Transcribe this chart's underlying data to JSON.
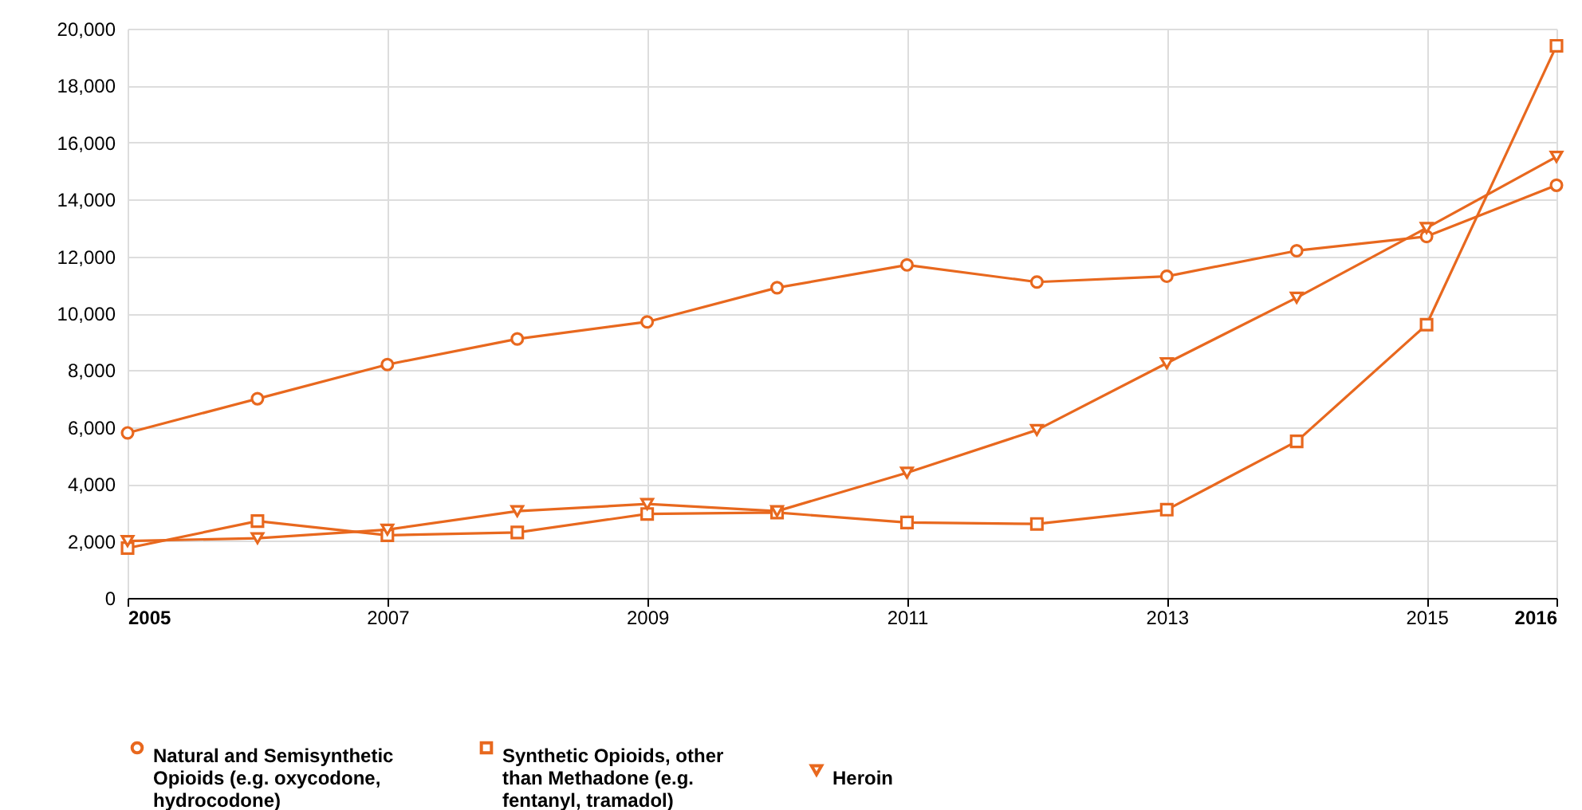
{
  "chart_data": {
    "type": "line",
    "x": [
      2005,
      2006,
      2007,
      2008,
      2009,
      2010,
      2011,
      2012,
      2013,
      2014,
      2015,
      2016
    ],
    "series": [
      {
        "name": "Natural and Semisynthetic Opioids (e.g. oxycodone, hydrocodone)",
        "color": "#e8681e",
        "marker": "circle",
        "values": [
          5800,
          7000,
          8200,
          9100,
          9700,
          10900,
          11700,
          11100,
          11300,
          12200,
          12700,
          14500
        ]
      },
      {
        "name": "Synthetic Opioids, other than Methadone (e.g. fentanyl, tramadol)",
        "color": "#e8681e",
        "marker": "square",
        "values": [
          1750,
          2700,
          2200,
          2300,
          2950,
          3000,
          2650,
          2600,
          3100,
          5500,
          9600,
          19400
        ]
      },
      {
        "name": "Heroin",
        "color": "#e8681e",
        "marker": "triangle",
        "values": [
          2000,
          2100,
          2400,
          3050,
          3300,
          3050,
          4400,
          5900,
          8250,
          10550,
          13000,
          15500
        ]
      }
    ],
    "xlim": [
      2005,
      2016
    ],
    "xticks": [
      2005,
      2007,
      2009,
      2011,
      2013,
      2015,
      2016
    ],
    "ylim": [
      0,
      20000
    ],
    "yticks": [
      0,
      {
        "value": 2000,
        "label": "2,000"
      },
      {
        "value": 4000,
        "label": "4,000"
      },
      {
        "value": 6000,
        "label": "6,000"
      },
      {
        "value": 8000,
        "label": "8,000"
      },
      {
        "value": 10000,
        "label": "10,000"
      },
      {
        "value": 12000,
        "label": "12,000"
      },
      {
        "value": 14000,
        "label": "14,000"
      },
      {
        "value": 16000,
        "label": "16,000"
      },
      {
        "value": 18000,
        "label": "18,000"
      },
      {
        "value": 20000,
        "label": "20,000"
      }
    ],
    "grid": true,
    "legend": "bottom",
    "line_style": "solid"
  }
}
